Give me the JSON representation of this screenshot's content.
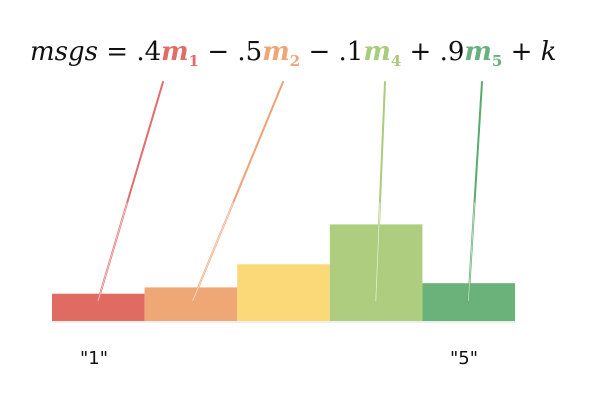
{
  "formula": {
    "lhs": "msgs",
    "equals": "=",
    "terms": [
      {
        "sign": "",
        "coef": ".4",
        "var": "m",
        "sub": "1",
        "color": "#e06d66"
      },
      {
        "sign": "−",
        "coef": ".5",
        "var": "m",
        "sub": "2",
        "color": "#efa676"
      },
      {
        "sign": "−",
        "coef": ".1",
        "var": "m",
        "sub": "4",
        "color": "#a7cc7b"
      },
      {
        "sign": "+",
        "coef": ".9",
        "var": "m",
        "sub": "5",
        "color": "#68b07c"
      }
    ],
    "tail_sign": "+",
    "tail_var": "k"
  },
  "histogram": {
    "bars": [
      {
        "id": "1",
        "height": 0.13,
        "color": "#e06b63"
      },
      {
        "id": "2",
        "height": 0.16,
        "color": "#efa776"
      },
      {
        "id": "3",
        "height": 0.27,
        "color": "#fbd979"
      },
      {
        "id": "4",
        "height": 0.46,
        "color": "#aecd7f"
      },
      {
        "id": "5",
        "height": 0.18,
        "color": "#6bb27a"
      }
    ],
    "labels": [
      {
        "text": "\"1\"",
        "bar": 0
      },
      {
        "text": "\"5\"",
        "bar": 4
      }
    ]
  },
  "connectors": [
    {
      "term": 0,
      "bar": 0,
      "color": "#e46c6c"
    },
    {
      "term": 1,
      "bar": 1,
      "color": "#f0a275"
    },
    {
      "term": 2,
      "bar": 3,
      "color": "#a9cd7a"
    },
    {
      "term": 3,
      "bar": 4,
      "color": "#5aaa6a"
    }
  ]
}
